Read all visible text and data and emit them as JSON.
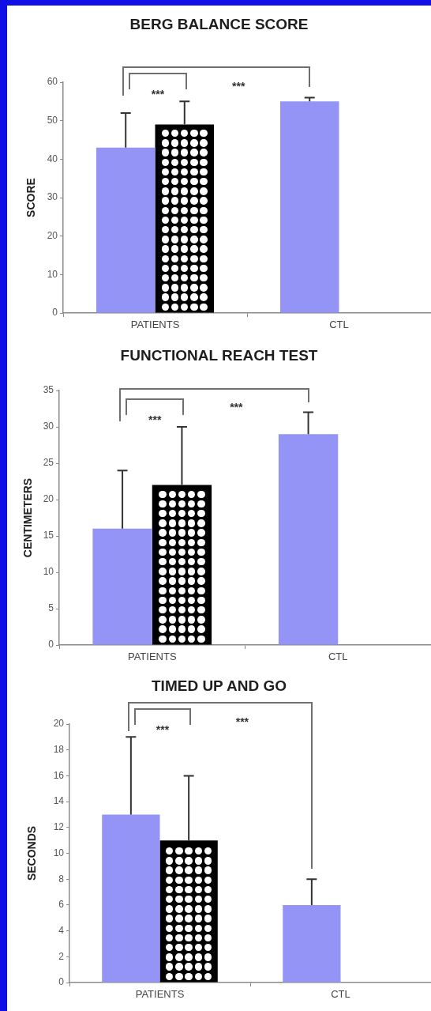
{
  "chart_data": [
    {
      "type": "bar",
      "title": "BERG BALANCE SCORE",
      "ylabel": "SCORE",
      "categories": [
        "PATIENTS",
        "CTL"
      ],
      "series": [
        {
          "color": "#9494f6",
          "values": [
            43,
            55
          ],
          "errors": [
            [
              43,
              52
            ],
            [
              55,
              56
            ]
          ]
        },
        {
          "color": "#000000",
          "values": [
            49,
            null
          ],
          "errors": [
            [
              49,
              55
            ],
            null
          ]
        }
      ],
      "ylim": [
        0,
        60
      ],
      "yticks": [
        0,
        10,
        20,
        30,
        40,
        50,
        60
      ],
      "annotations": [
        "***",
        "***"
      ]
    },
    {
      "type": "bar",
      "title": "FUNCTIONAL REACH TEST",
      "ylabel": "CENTIMETERS",
      "categories": [
        "PATIENTS",
        "CTL"
      ],
      "series": [
        {
          "color": "#9494f6",
          "values": [
            16,
            29
          ],
          "errors": [
            [
              16,
              24
            ],
            [
              29,
              32
            ]
          ]
        },
        {
          "color": "#000000",
          "values": [
            22,
            null
          ],
          "errors": [
            [
              22,
              30
            ],
            null
          ]
        }
      ],
      "ylim": [
        0,
        35
      ],
      "yticks": [
        0,
        5,
        10,
        15,
        20,
        25,
        30,
        35
      ],
      "annotations": [
        "***",
        "***"
      ]
    },
    {
      "type": "bar",
      "title": "TIMED UP AND GO",
      "ylabel": "SECONDS",
      "categories": [
        "PATIENTS",
        "CTL"
      ],
      "series": [
        {
          "color": "#9494f6",
          "values": [
            13,
            6
          ],
          "errors": [
            [
              13,
              19
            ],
            [
              6,
              8
            ]
          ]
        },
        {
          "color": "#000000",
          "values": [
            11,
            null
          ],
          "errors": [
            [
              11,
              16
            ],
            null
          ]
        }
      ],
      "ylim": [
        0,
        20
      ],
      "yticks": [
        0,
        2,
        4,
        6,
        8,
        10,
        12,
        14,
        16,
        18,
        20
      ],
      "annotations": [
        "***",
        "***"
      ]
    }
  ]
}
